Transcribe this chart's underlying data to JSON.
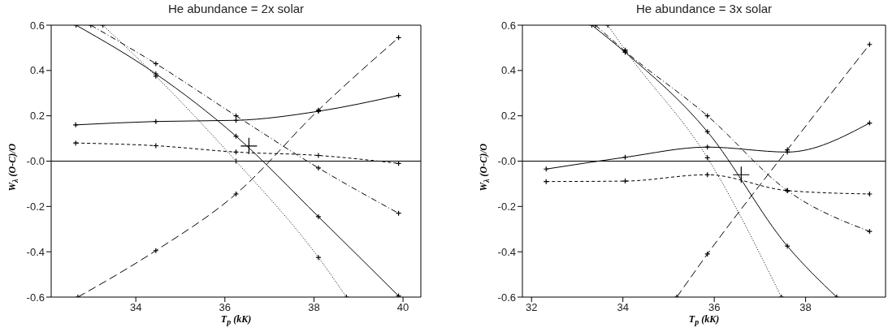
{
  "chart_data": [
    {
      "type": "line",
      "title": "He abundance = 2x solar",
      "xlabel": "T$_{p}$ (kK)",
      "ylabel": "W$_{λ}$ (O-C)/O",
      "xlim": [
        32.1,
        40.4
      ],
      "xticks": [
        34,
        36,
        38,
        40
      ],
      "ylim": [
        -0.6,
        0.6
      ],
      "yticks": [
        0.6,
        0.4,
        0.2,
        {
          "value": 0,
          "label": "-0.0"
        },
        -0.2,
        -0.4,
        -0.6
      ],
      "marker": "cross",
      "ref_lines": [
        {
          "axis": "y",
          "value": 0,
          "color": "#000000"
        }
      ],
      "series": [
        {
          "color": "#000000",
          "line_style": "solid",
          "x": [
            32.65,
            34.45,
            36.25,
            38.1,
            39.9
          ],
          "values": [
            0.16,
            0.175,
            0.18,
            0.22,
            0.29
          ]
        },
        {
          "color": "#000000",
          "line_style": "dashed",
          "x": [
            32.65,
            34.45,
            36.25,
            38.1,
            39.9
          ],
          "values": [
            0.08,
            0.068,
            0.04,
            0.025,
            -0.01
          ]
        },
        {
          "color": "#000000",
          "line_style": "longdashed",
          "x": [
            32.7,
            34.45,
            36.25,
            38.1,
            39.9
          ],
          "values": [
            -0.6,
            -0.395,
            -0.145,
            0.225,
            0.545
          ]
        },
        {
          "color": "#000000",
          "line_style": "solid",
          "x": [
            32.66,
            34.45,
            36.25,
            38.1,
            39.9
          ],
          "values": [
            0.6,
            0.385,
            0.11,
            -0.245,
            -0.595
          ]
        },
        {
          "color": "#000000",
          "line_style": "dashdot",
          "x": [
            32.99,
            34.45,
            36.25,
            38.1,
            39.9
          ],
          "values": [
            0.6,
            0.43,
            0.2,
            -0.03,
            -0.23
          ]
        },
        {
          "color": "#000000",
          "line_style": "dotted",
          "x": [
            33.26,
            34.45,
            36.25,
            38.1,
            38.73
          ],
          "values": [
            0.6,
            0.375,
            0.0,
            -0.425,
            -0.6
          ]
        },
        {
          "type": "scatter",
          "color": "#000000",
          "x": [
            36.54
          ],
          "values": [
            0.067
          ]
        }
      ]
    },
    {
      "type": "line",
      "title": "He abundance = 3x solar",
      "xlabel": "T$_{p}$ (kK)",
      "ylabel": "W$_{λ}$ (O-C)/O",
      "xlim": [
        31.8,
        39.75
      ],
      "xticks": [
        32,
        34,
        36,
        38
      ],
      "ylim": [
        -0.6,
        0.6
      ],
      "yticks": [
        0.6,
        0.4,
        0.2,
        {
          "value": 0,
          "label": "-0.0"
        },
        -0.2,
        -0.4,
        -0.6
      ],
      "marker": "cross",
      "ref_lines": [
        {
          "axis": "y",
          "value": 0,
          "color": "#000000"
        }
      ],
      "series": [
        {
          "color": "#000000",
          "line_style": "solid",
          "x": [
            32.32,
            34.05,
            35.85,
            37.6,
            39.4
          ],
          "values": [
            -0.035,
            0.017,
            0.062,
            0.04,
            0.168
          ]
        },
        {
          "color": "#000000",
          "line_style": "dashed",
          "x": [
            32.32,
            34.05,
            35.85,
            37.6,
            39.4
          ],
          "values": [
            -0.09,
            -0.088,
            -0.06,
            -0.13,
            -0.145
          ]
        },
        {
          "color": "#000000",
          "line_style": "longdashed",
          "x": [
            35.18,
            35.85,
            37.6,
            39.4
          ],
          "values": [
            -0.6,
            -0.41,
            0.05,
            0.515
          ]
        },
        {
          "color": "#000000",
          "line_style": "solid",
          "x": [
            33.32,
            34.05,
            35.85,
            37.6,
            38.68
          ],
          "values": [
            0.6,
            0.48,
            0.13,
            -0.375,
            -0.6
          ]
        },
        {
          "color": "#000000",
          "line_style": "dashdot",
          "x": [
            33.4,
            34.05,
            35.85,
            37.6,
            39.4
          ],
          "values": [
            0.6,
            0.485,
            0.2,
            -0.13,
            -0.31
          ]
        },
        {
          "color": "#000000",
          "line_style": "dotted",
          "x": [
            33.67,
            34.05,
            35.85,
            37.47
          ],
          "values": [
            0.6,
            0.49,
            0.015,
            -0.6
          ]
        },
        {
          "type": "scatter",
          "color": "#000000",
          "x": [
            36.59
          ],
          "values": [
            -0.06
          ]
        }
      ]
    }
  ]
}
